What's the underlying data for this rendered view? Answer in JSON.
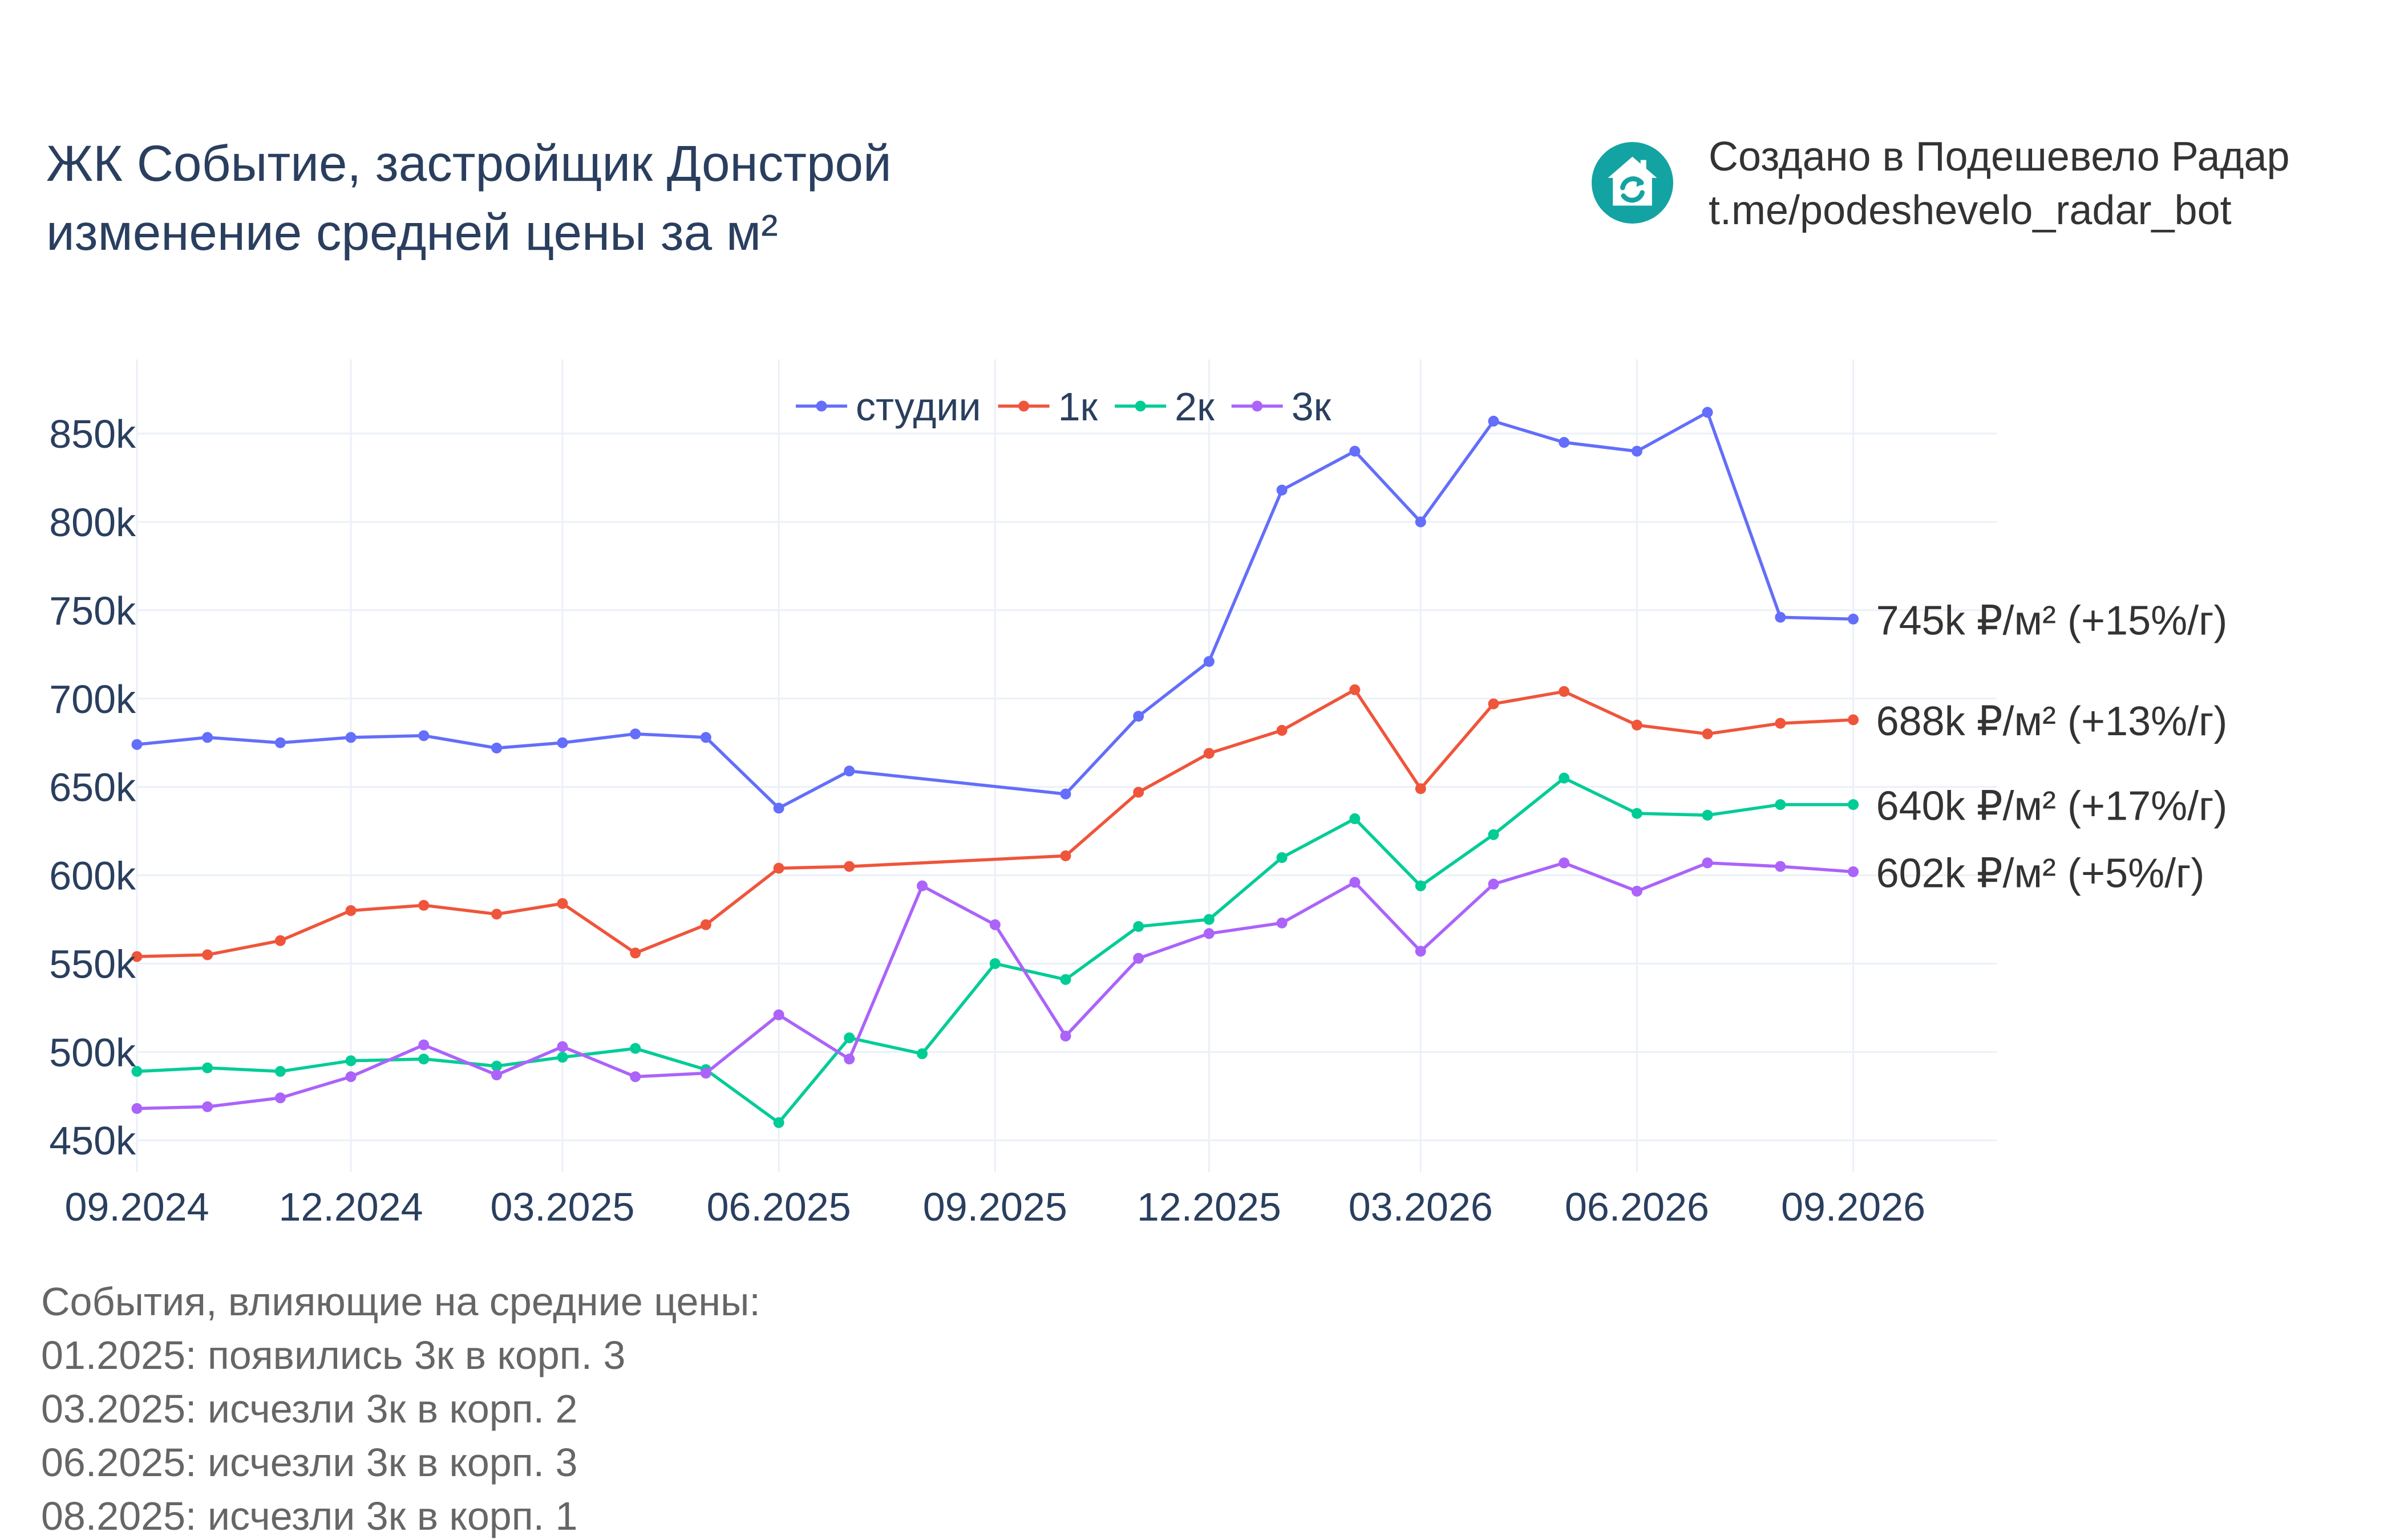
{
  "title": {
    "line1": "ЖК Событие, застройщик Донстрой",
    "line2": "изменение средней цены за м²"
  },
  "credit": {
    "line1": "Создано в Подешевело Радар",
    "line2": "t.me/podeshevelo_radar_bot",
    "logo_color": "#13a3a3",
    "logo_icon": "house-refresh-icon"
  },
  "events": {
    "header": "События, влияющие на средние цены:",
    "items": [
      "01.2025: появились 3к в корп. 3",
      "03.2025: исчезли 3к в корп. 2",
      "06.2025: исчезли 3к в корп. 3",
      "08.2025: исчезли 3к в корп. 1"
    ]
  },
  "chart_data": {
    "type": "line",
    "title": "",
    "xlabel": "",
    "ylabel": "",
    "x_type": "date",
    "xlim": [
      "2024-09-01",
      "2026-11-01"
    ],
    "ylim": [
      432000,
      892000
    ],
    "grid": true,
    "legend_position": "top-center",
    "x_ticks": [
      {
        "date": "2024-09-01",
        "label": "09.2024"
      },
      {
        "date": "2024-12-01",
        "label": "12.2024"
      },
      {
        "date": "2025-03-01",
        "label": "03.2025"
      },
      {
        "date": "2025-06-01",
        "label": "06.2025"
      },
      {
        "date": "2025-09-01",
        "label": "09.2025"
      },
      {
        "date": "2025-12-01",
        "label": "12.2025"
      },
      {
        "date": "2026-03-01",
        "label": "03.2026"
      },
      {
        "date": "2026-06-01",
        "label": "06.2026"
      },
      {
        "date": "2026-09-01",
        "label": "09.2026"
      }
    ],
    "y_ticks": [
      {
        "value": 450000,
        "label": "450k"
      },
      {
        "value": 500000,
        "label": "500k"
      },
      {
        "value": 550000,
        "label": "550k"
      },
      {
        "value": 600000,
        "label": "600k"
      },
      {
        "value": 650000,
        "label": "650k"
      },
      {
        "value": 700000,
        "label": "700k"
      },
      {
        "value": 750000,
        "label": "750k"
      },
      {
        "value": 800000,
        "label": "800k"
      },
      {
        "value": 850000,
        "label": "850k"
      }
    ],
    "series": [
      {
        "name": "студии",
        "color": "#636efa",
        "end_label": "745k ₽/м² (+15%/г)",
        "points": [
          [
            "2024-09-01",
            674000
          ],
          [
            "2024-10-01",
            678000
          ],
          [
            "2024-11-01",
            675000
          ],
          [
            "2024-12-01",
            678000
          ],
          [
            "2025-01-01",
            679000
          ],
          [
            "2025-02-01",
            672000
          ],
          [
            "2025-03-01",
            675000
          ],
          [
            "2025-04-01",
            680000
          ],
          [
            "2025-05-01",
            678000
          ],
          [
            "2025-06-01",
            638000
          ],
          [
            "2025-07-01",
            659000
          ],
          [
            "2025-10-01",
            646000
          ],
          [
            "2025-11-01",
            690000
          ],
          [
            "2025-12-01",
            721000
          ],
          [
            "2026-01-01",
            818000
          ],
          [
            "2026-02-01",
            840000
          ],
          [
            "2026-03-01",
            800000
          ],
          [
            "2026-04-01",
            857000
          ],
          [
            "2026-05-01",
            845000
          ],
          [
            "2026-06-01",
            840000
          ],
          [
            "2026-07-01",
            862000
          ],
          [
            "2026-08-01",
            746000
          ],
          [
            "2026-09-01",
            745000
          ]
        ]
      },
      {
        "name": "1к",
        "color": "#ef553b",
        "end_label": "688k ₽/м² (+13%/г)",
        "points": [
          [
            "2024-09-01",
            554000
          ],
          [
            "2024-10-01",
            555000
          ],
          [
            "2024-11-01",
            563000
          ],
          [
            "2024-12-01",
            580000
          ],
          [
            "2025-01-01",
            583000
          ],
          [
            "2025-02-01",
            578000
          ],
          [
            "2025-03-01",
            584000
          ],
          [
            "2025-04-01",
            556000
          ],
          [
            "2025-05-01",
            572000
          ],
          [
            "2025-06-01",
            604000
          ],
          [
            "2025-07-01",
            605000
          ],
          [
            "2025-10-01",
            611000
          ],
          [
            "2025-11-01",
            647000
          ],
          [
            "2025-12-01",
            669000
          ],
          [
            "2026-01-01",
            682000
          ],
          [
            "2026-02-01",
            705000
          ],
          [
            "2026-03-01",
            649000
          ],
          [
            "2026-04-01",
            697000
          ],
          [
            "2026-05-01",
            704000
          ],
          [
            "2026-06-01",
            685000
          ],
          [
            "2026-07-01",
            680000
          ],
          [
            "2026-08-01",
            686000
          ],
          [
            "2026-09-01",
            688000
          ]
        ]
      },
      {
        "name": "2к",
        "color": "#00cc96",
        "end_label": "640k ₽/м² (+17%/г)",
        "points": [
          [
            "2024-09-01",
            489000
          ],
          [
            "2024-10-01",
            491000
          ],
          [
            "2024-11-01",
            489000
          ],
          [
            "2024-12-01",
            495000
          ],
          [
            "2025-01-01",
            496000
          ],
          [
            "2025-02-01",
            492000
          ],
          [
            "2025-03-01",
            497000
          ],
          [
            "2025-04-01",
            502000
          ],
          [
            "2025-05-01",
            490000
          ],
          [
            "2025-06-01",
            460000
          ],
          [
            "2025-07-01",
            508000
          ],
          [
            "2025-08-01",
            499000
          ],
          [
            "2025-09-01",
            550000
          ],
          [
            "2025-10-01",
            541000
          ],
          [
            "2025-11-01",
            571000
          ],
          [
            "2025-12-01",
            575000
          ],
          [
            "2026-01-01",
            610000
          ],
          [
            "2026-02-01",
            632000
          ],
          [
            "2026-03-01",
            594000
          ],
          [
            "2026-04-01",
            623000
          ],
          [
            "2026-05-01",
            655000
          ],
          [
            "2026-06-01",
            635000
          ],
          [
            "2026-07-01",
            634000
          ],
          [
            "2026-08-01",
            640000
          ],
          [
            "2026-09-01",
            640000
          ]
        ]
      },
      {
        "name": "3к",
        "color": "#ab63fa",
        "end_label": "602k ₽/м² (+5%/г)",
        "points": [
          [
            "2024-09-01",
            468000
          ],
          [
            "2024-10-01",
            469000
          ],
          [
            "2024-11-01",
            474000
          ],
          [
            "2024-12-01",
            486000
          ],
          [
            "2025-01-01",
            504000
          ],
          [
            "2025-02-01",
            487000
          ],
          [
            "2025-03-01",
            503000
          ],
          [
            "2025-04-01",
            486000
          ],
          [
            "2025-05-01",
            488000
          ],
          [
            "2025-06-01",
            521000
          ],
          [
            "2025-07-01",
            496000
          ],
          [
            "2025-08-01",
            594000
          ],
          [
            "2025-09-01",
            572000
          ],
          [
            "2025-10-01",
            509000
          ],
          [
            "2025-11-01",
            553000
          ],
          [
            "2025-12-01",
            567000
          ],
          [
            "2026-01-01",
            573000
          ],
          [
            "2026-02-01",
            596000
          ],
          [
            "2026-03-01",
            557000
          ],
          [
            "2026-04-01",
            595000
          ],
          [
            "2026-05-01",
            607000
          ],
          [
            "2026-06-01",
            591000
          ],
          [
            "2026-07-01",
            607000
          ],
          [
            "2026-08-01",
            605000
          ],
          [
            "2026-09-01",
            602000
          ]
        ]
      }
    ]
  }
}
